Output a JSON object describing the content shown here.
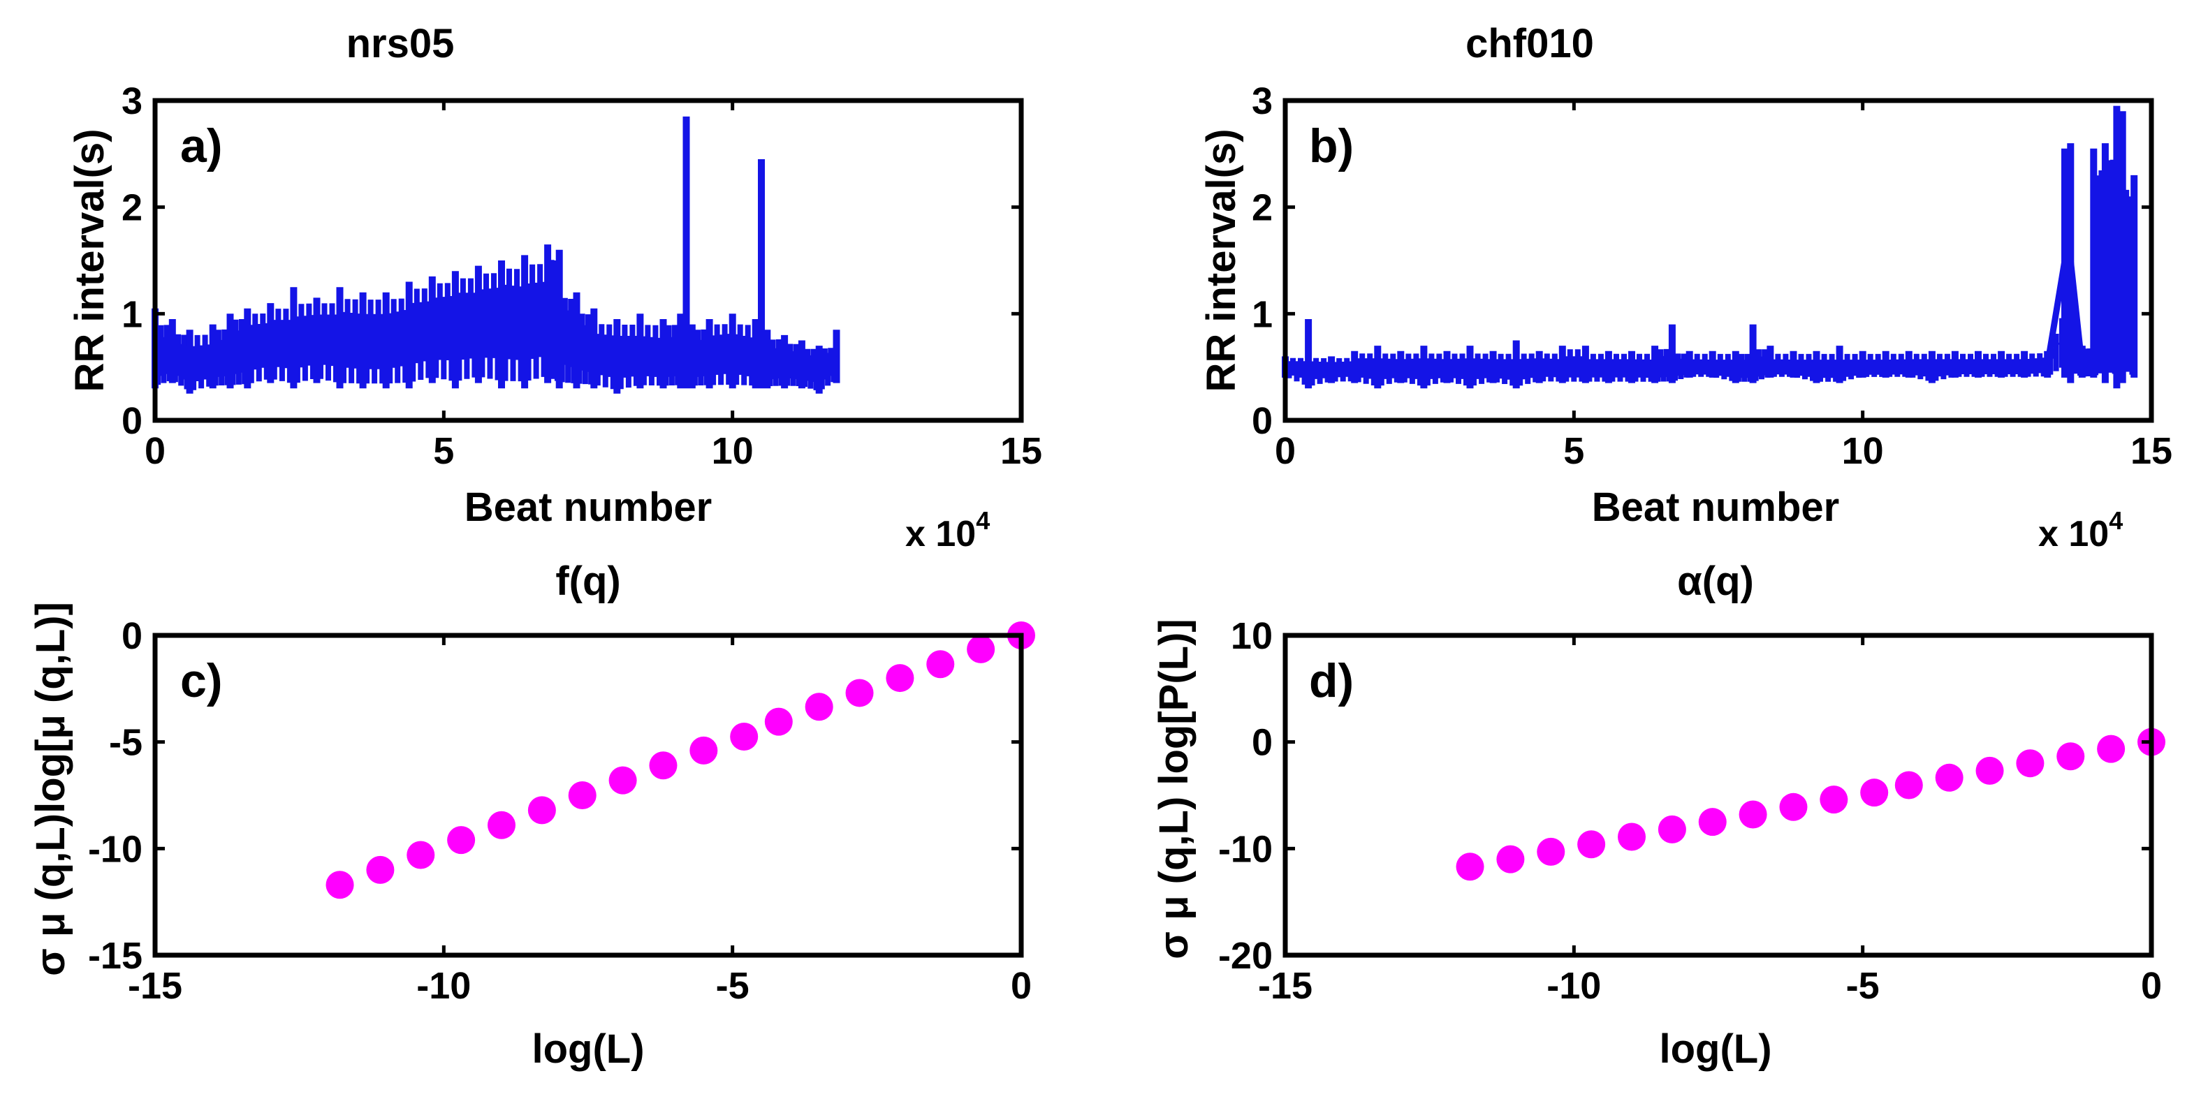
{
  "colors": {
    "trace": "#1414e6",
    "marker": "#ff00ff",
    "axis": "#000000",
    "background": "#ffffff"
  },
  "chart_data": [
    {
      "id": "a",
      "type": "line",
      "panel_label": "a)",
      "title": "nrs05",
      "xlabel": "Beat number",
      "ylabel": "RR interval(s)",
      "xlim": [
        0,
        15
      ],
      "ylim": [
        0,
        3
      ],
      "xticks": [
        "0",
        "5",
        "10",
        "15"
      ],
      "yticks": [
        "0",
        "1",
        "2",
        "3"
      ],
      "x_multiplier_base": "x 10",
      "x_multiplier_exp": "4",
      "series": [
        {
          "name": "RR interval",
          "x": [
            0,
            0.3,
            0.6,
            1.0,
            1.3,
            1.6,
            2.0,
            2.4,
            2.8,
            3.2,
            3.6,
            4.0,
            4.4,
            4.8,
            5.2,
            5.6,
            6.0,
            6.4,
            6.8,
            7.0,
            7.3,
            7.6,
            8.0,
            8.4,
            8.8,
            9.1,
            9.2,
            9.3,
            9.6,
            10.0,
            10.4,
            10.5,
            10.6,
            10.9,
            11.2,
            11.5,
            11.8
          ],
          "mean": [
            0.55,
            0.6,
            0.5,
            0.55,
            0.6,
            0.7,
            0.75,
            0.75,
            0.8,
            0.8,
            0.75,
            0.75,
            0.85,
            0.9,
            0.95,
            0.95,
            1.0,
            0.95,
            1.0,
            0.9,
            0.75,
            0.65,
            0.6,
            0.6,
            0.55,
            0.6,
            0.6,
            0.55,
            0.6,
            0.65,
            0.55,
            0.55,
            0.5,
            0.55,
            0.5,
            0.5,
            0.6
          ],
          "low": [
            0.3,
            0.35,
            0.25,
            0.3,
            0.3,
            0.3,
            0.35,
            0.3,
            0.35,
            0.3,
            0.3,
            0.3,
            0.3,
            0.35,
            0.3,
            0.35,
            0.3,
            0.3,
            0.35,
            0.3,
            0.3,
            0.3,
            0.25,
            0.3,
            0.3,
            0.3,
            0.3,
            0.3,
            0.3,
            0.3,
            0.3,
            0.3,
            0.3,
            0.3,
            0.3,
            0.25,
            0.35
          ],
          "high": [
            1.05,
            0.95,
            0.85,
            0.9,
            1.0,
            1.05,
            1.1,
            1.25,
            1.15,
            1.25,
            1.2,
            1.2,
            1.3,
            1.35,
            1.4,
            1.45,
            1.5,
            1.55,
            1.65,
            1.6,
            1.2,
            1.05,
            0.95,
            1.0,
            0.95,
            1.0,
            2.85,
            0.9,
            0.95,
            1.0,
            0.95,
            2.45,
            0.85,
            0.8,
            0.75,
            0.7,
            0.85
          ]
        }
      ]
    },
    {
      "id": "b",
      "type": "line",
      "panel_label": "b)",
      "title": "chf010",
      "xlabel": "Beat number",
      "ylabel": "RR interval(s)",
      "xlim": [
        0,
        15
      ],
      "ylim": [
        0,
        3
      ],
      "xticks": [
        "0",
        "5",
        "10",
        "15"
      ],
      "yticks": [
        "0",
        "1",
        "2",
        "3"
      ],
      "x_multiplier_base": "x 10",
      "x_multiplier_exp": "4",
      "series": [
        {
          "name": "RR interval",
          "x": [
            0,
            0.4,
            0.8,
            1.2,
            1.6,
            2.0,
            2.4,
            2.8,
            3.2,
            3.6,
            4.0,
            4.4,
            4.8,
            5.2,
            5.6,
            6.0,
            6.4,
            6.7,
            7.0,
            7.4,
            7.8,
            8.1,
            8.4,
            8.8,
            9.2,
            9.6,
            10.0,
            10.4,
            10.8,
            11.2,
            11.6,
            12.0,
            12.4,
            12.8,
            13.2,
            13.5,
            13.6,
            13.8,
            14.0,
            14.2,
            14.4,
            14.5,
            14.7
          ],
          "mean": [
            0.5,
            0.5,
            0.48,
            0.5,
            0.5,
            0.48,
            0.5,
            0.48,
            0.5,
            0.48,
            0.48,
            0.5,
            0.48,
            0.48,
            0.48,
            0.48,
            0.47,
            0.5,
            0.48,
            0.47,
            0.47,
            0.47,
            0.48,
            0.47,
            0.47,
            0.47,
            0.47,
            0.47,
            0.48,
            0.48,
            0.48,
            0.48,
            0.48,
            0.48,
            0.52,
            1.5,
            1.5,
            0.5,
            0.55,
            1.5,
            1.6,
            1.8,
            0.55
          ],
          "low": [
            0.4,
            0.3,
            0.35,
            0.35,
            0.3,
            0.35,
            0.3,
            0.35,
            0.3,
            0.35,
            0.3,
            0.35,
            0.35,
            0.35,
            0.35,
            0.35,
            0.35,
            0.35,
            0.4,
            0.4,
            0.35,
            0.35,
            0.4,
            0.4,
            0.35,
            0.35,
            0.4,
            0.4,
            0.4,
            0.35,
            0.4,
            0.4,
            0.4,
            0.4,
            0.4,
            0.4,
            0.35,
            0.4,
            0.4,
            0.35,
            0.3,
            0.35,
            0.4
          ],
          "high": [
            0.6,
            0.95,
            0.6,
            0.65,
            0.7,
            0.65,
            0.7,
            0.65,
            0.7,
            0.65,
            0.75,
            0.65,
            0.7,
            0.7,
            0.65,
            0.65,
            0.7,
            0.9,
            0.65,
            0.65,
            0.65,
            0.9,
            0.7,
            0.65,
            0.65,
            0.7,
            0.65,
            0.65,
            0.65,
            0.65,
            0.65,
            0.65,
            0.65,
            0.65,
            0.65,
            2.55,
            2.6,
            0.7,
            2.55,
            2.6,
            2.95,
            2.9,
            2.3
          ]
        }
      ]
    },
    {
      "id": "c",
      "type": "scatter",
      "panel_label": "c)",
      "title": "f(q)",
      "xlabel": "log(L)",
      "ylabel": "σ μ (q,L)log[μ (q,L)]",
      "xlim": [
        -15,
        0
      ],
      "ylim": [
        -15,
        0
      ],
      "xticks": [
        "-15",
        "-10",
        "-5",
        "0"
      ],
      "yticks": [
        "0",
        "-5",
        "-10",
        "-15"
      ],
      "series": [
        {
          "name": "f(q)",
          "x": [
            -11.8,
            -11.1,
            -10.4,
            -9.7,
            -9.0,
            -8.3,
            -7.6,
            -6.9,
            -6.2,
            -5.5,
            -4.8,
            -4.2,
            -3.5,
            -2.8,
            -2.1,
            -1.4,
            -0.7,
            0
          ],
          "y": [
            -11.7,
            -11.0,
            -10.3,
            -9.6,
            -8.9,
            -8.2,
            -7.5,
            -6.8,
            -6.1,
            -5.4,
            -4.75,
            -4.05,
            -3.35,
            -2.7,
            -2.0,
            -1.35,
            -0.65,
            0
          ]
        }
      ]
    },
    {
      "id": "d",
      "type": "scatter",
      "panel_label": "d)",
      "title": "α(q)",
      "xlabel": "log(L)",
      "ylabel": "σ μ (q,L) log[P(L)]",
      "xlim": [
        -15,
        0
      ],
      "ylim": [
        -20,
        10
      ],
      "xticks": [
        "-15",
        "-10",
        "-5",
        "0"
      ],
      "yticks": [
        "10",
        "0",
        "-10",
        "-20"
      ],
      "series": [
        {
          "name": "alpha(q)",
          "x": [
            -11.8,
            -11.1,
            -10.4,
            -9.7,
            -9.0,
            -8.3,
            -7.6,
            -6.9,
            -6.2,
            -5.5,
            -4.8,
            -4.2,
            -3.5,
            -2.8,
            -2.1,
            -1.4,
            -0.7,
            0
          ],
          "y": [
            -11.7,
            -11.0,
            -10.3,
            -9.6,
            -8.9,
            -8.2,
            -7.5,
            -6.8,
            -6.1,
            -5.4,
            -4.75,
            -4.05,
            -3.35,
            -2.7,
            -2.0,
            -1.35,
            -0.65,
            0
          ]
        }
      ]
    }
  ]
}
